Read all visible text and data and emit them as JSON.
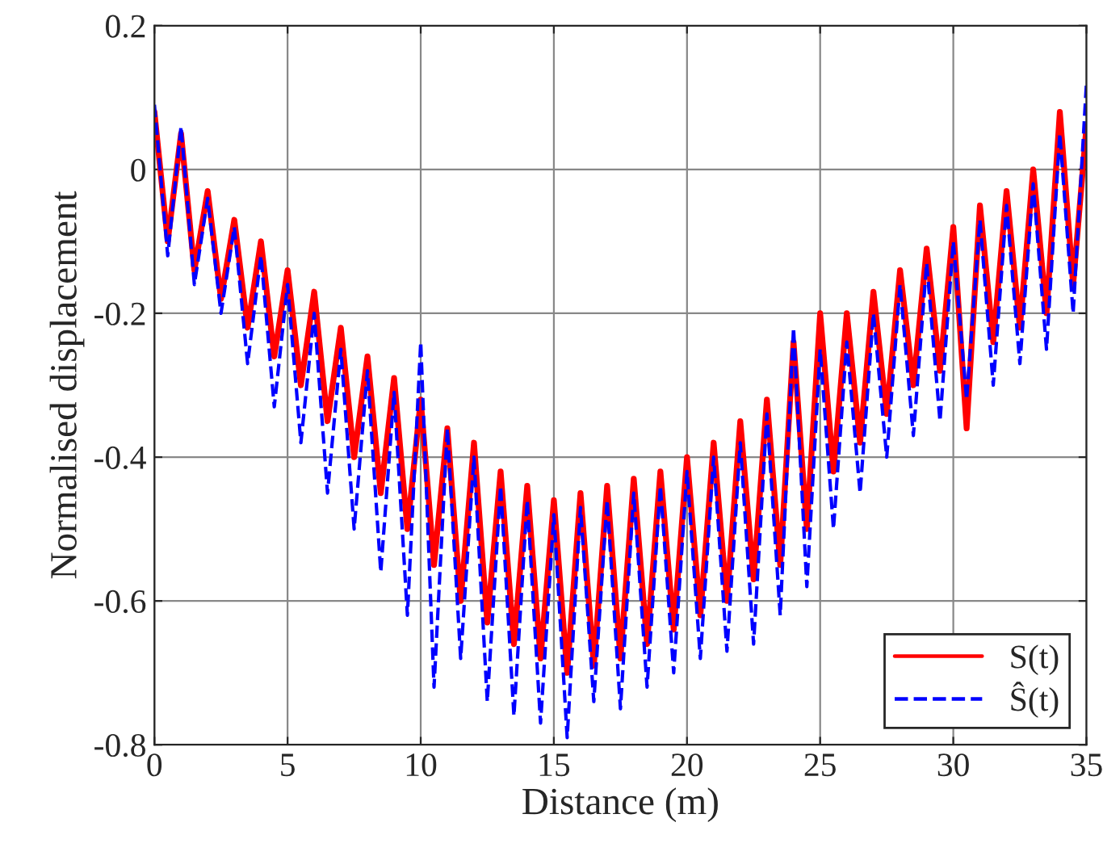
{
  "chart_data": {
    "type": "line",
    "xlabel": "Distance (m)",
    "ylabel": "Normalised displacement",
    "x": [
      0,
      0.5,
      1,
      1.5,
      2,
      2.5,
      3,
      3.5,
      4,
      4.5,
      5,
      5.5,
      6,
      6.5,
      7,
      7.5,
      8,
      8.5,
      9,
      9.5,
      10,
      10.5,
      11,
      11.5,
      12,
      12.5,
      13,
      13.5,
      14,
      14.5,
      15,
      15.5,
      16,
      16.5,
      17,
      17.5,
      18,
      18.5,
      19,
      19.5,
      20,
      20.5,
      21,
      21.5,
      22,
      22.5,
      23,
      23.5,
      24,
      24.5,
      25,
      25.5,
      26,
      26.5,
      27,
      27.5,
      28,
      28.5,
      29,
      29.5,
      30,
      30.5,
      31,
      31.5,
      32,
      32.5,
      33,
      33.5,
      34,
      34.5,
      35
    ],
    "series": [
      {
        "name": "S(t)",
        "color": "#ff0000",
        "line_style": "solid",
        "values": [
          0.08,
          -0.1,
          0.05,
          -0.14,
          -0.03,
          -0.18,
          -0.07,
          -0.22,
          -0.1,
          -0.26,
          -0.14,
          -0.3,
          -0.17,
          -0.35,
          -0.22,
          -0.4,
          -0.26,
          -0.45,
          -0.29,
          -0.5,
          -0.32,
          -0.55,
          -0.36,
          -0.6,
          -0.38,
          -0.63,
          -0.42,
          -0.66,
          -0.44,
          -0.68,
          -0.46,
          -0.7,
          -0.45,
          -0.69,
          -0.44,
          -0.68,
          -0.43,
          -0.66,
          -0.42,
          -0.64,
          -0.4,
          -0.62,
          -0.38,
          -0.6,
          -0.35,
          -0.57,
          -0.32,
          -0.55,
          -0.24,
          -0.5,
          -0.2,
          -0.42,
          -0.2,
          -0.38,
          -0.17,
          -0.34,
          -0.14,
          -0.3,
          -0.11,
          -0.28,
          -0.08,
          -0.36,
          -0.05,
          -0.24,
          -0.03,
          -0.22,
          0.0,
          -0.2,
          0.08,
          -0.16,
          0.06
        ]
      },
      {
        "name": "Ŝ(t)",
        "color": "#0000ff",
        "line_style": "dashed",
        "values": [
          0.09,
          -0.12,
          0.06,
          -0.16,
          -0.04,
          -0.2,
          -0.08,
          -0.27,
          -0.12,
          -0.33,
          -0.16,
          -0.38,
          -0.2,
          -0.45,
          -0.25,
          -0.5,
          -0.28,
          -0.56,
          -0.31,
          -0.62,
          -0.24,
          -0.72,
          -0.36,
          -0.68,
          -0.4,
          -0.74,
          -0.44,
          -0.76,
          -0.46,
          -0.77,
          -0.48,
          -0.79,
          -0.47,
          -0.74,
          -0.46,
          -0.75,
          -0.45,
          -0.72,
          -0.44,
          -0.7,
          -0.42,
          -0.68,
          -0.4,
          -0.67,
          -0.38,
          -0.66,
          -0.34,
          -0.62,
          -0.22,
          -0.58,
          -0.25,
          -0.5,
          -0.24,
          -0.45,
          -0.2,
          -0.4,
          -0.16,
          -0.37,
          -0.13,
          -0.35,
          -0.1,
          -0.32,
          -0.07,
          -0.3,
          -0.05,
          -0.27,
          -0.02,
          -0.25,
          0.05,
          -0.2,
          0.12
        ]
      }
    ],
    "xlim": [
      0,
      35
    ],
    "xticks": [
      0,
      5,
      10,
      15,
      20,
      25,
      30,
      35
    ],
    "ylim": [
      -0.8,
      0.2
    ],
    "yticks": [
      {
        "value": -0.8,
        "label": "-0.8"
      },
      {
        "value": -0.6,
        "label": "-0.6"
      },
      {
        "value": -0.4,
        "label": "-0.4"
      },
      {
        "value": -0.2,
        "label": "-0.2"
      },
      0,
      {
        "value": 0.2,
        "label": "0.2"
      }
    ],
    "grid": true,
    "legend": "bottom right"
  }
}
